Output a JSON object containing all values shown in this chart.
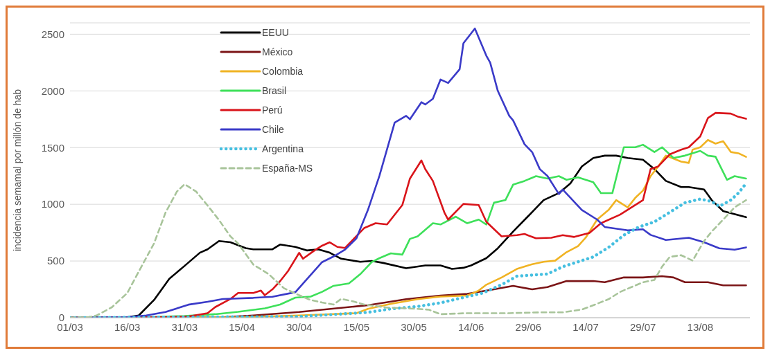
{
  "chart_data": {
    "type": "line",
    "ylabel": "incidencia semamal por millón de hab",
    "ylim": [
      0,
      2600
    ],
    "yticks": [
      0,
      500,
      1000,
      1500,
      2000,
      2500
    ],
    "xlim": [
      "--03-01",
      "--08-26"
    ],
    "xticks": [
      {
        "value": "--03-01",
        "label": "01/03"
      },
      {
        "value": "--03-16",
        "label": "16/03"
      },
      {
        "value": "--03-31",
        "label": "31/03"
      },
      {
        "value": "--04-15",
        "label": "15/04"
      },
      {
        "value": "--04-30",
        "label": "30/04"
      },
      {
        "value": "--05-15",
        "label": "15/05"
      },
      {
        "value": "--05-30",
        "label": "30/05"
      },
      {
        "value": "--06-14",
        "label": "14/06"
      },
      {
        "value": "--06-29",
        "label": "29/06"
      },
      {
        "value": "--07-14",
        "label": "14/07"
      },
      {
        "value": "--07-29",
        "label": "29/07"
      },
      {
        "value": "--08-13",
        "label": "13/08"
      }
    ],
    "grid": "y",
    "legend": "top left",
    "series": [
      {
        "name": "EEUU",
        "color": "#000000",
        "x": [
          "--03-01",
          "--03-16",
          "--03-19",
          "--03-23",
          "--03-27",
          "--03-31",
          "--04-04",
          "--04-06",
          "--04-09",
          "--04-12",
          "--04-16",
          "--04-18",
          "--04-23",
          "--04-25",
          "--04-29",
          "--05-02",
          "--05-05",
          "--05-08",
          "--05-11",
          "--05-16",
          "--05-19",
          "--05-22",
          "--05-28",
          "--06-02",
          "--06-06",
          "--06-09",
          "--06-12",
          "--06-14",
          "--06-18",
          "--06-21",
          "--06-25",
          "--06-29",
          "--07-03",
          "--07-07",
          "--07-10",
          "--07-13",
          "--07-16",
          "--07-19",
          "--07-22",
          "--07-25",
          "--07-29",
          "--08-01",
          "--08-04",
          "--08-08",
          "--08-10",
          "--08-14",
          "--08-16",
          "--08-19",
          "--08-25"
        ],
        "values": [
          0,
          5,
          20,
          156,
          343,
          457,
          573,
          603,
          676,
          665,
          613,
          603,
          603,
          645,
          624,
          593,
          603,
          573,
          520,
          493,
          500,
          483,
          436,
          461,
          461,
          430,
          440,
          461,
          525,
          612,
          759,
          897,
          1037,
          1099,
          1184,
          1334,
          1408,
          1429,
          1429,
          1408,
          1393,
          1311,
          1206,
          1152,
          1152,
          1131,
          1037,
          940,
          886
        ]
      },
      {
        "name": "México",
        "color": "#7b1416",
        "x": [
          "--03-01",
          "--04-10",
          "--04-18",
          "--04-30",
          "--05-15",
          "--05-18",
          "--05-28",
          "--06-06",
          "--06-13",
          "--06-20",
          "--06-25",
          "--06-30",
          "--07-04",
          "--07-09",
          "--07-16",
          "--07-19",
          "--07-24",
          "--07-29",
          "--08-03",
          "--08-06",
          "--08-09",
          "--08-15",
          "--08-19",
          "--08-25"
        ],
        "values": [
          0,
          5,
          20,
          50,
          100,
          110,
          163,
          195,
          210,
          250,
          281,
          250,
          270,
          323,
          323,
          313,
          355,
          355,
          366,
          355,
          313,
          313,
          285,
          285
        ]
      },
      {
        "name": "Colombia",
        "color": "#f0b323",
        "x": [
          "--03-01",
          "--04-15",
          "--04-30",
          "--05-15",
          "--05-18",
          "--05-24",
          "--05-31",
          "--06-06",
          "--06-13",
          "--06-16",
          "--06-18",
          "--06-22",
          "--06-26",
          "--06-30",
          "--07-03",
          "--07-06",
          "--07-09",
          "--07-12",
          "--07-14",
          "--07-17",
          "--07-20",
          "--07-22",
          "--07-25",
          "--07-27",
          "--07-29",
          "--07-31",
          "--08-02",
          "--08-04",
          "--08-08",
          "--08-10",
          "--08-11",
          "--08-13",
          "--08-15",
          "--08-17",
          "--08-19",
          "--08-21",
          "--08-23",
          "--08-25"
        ],
        "values": [
          0,
          5,
          20,
          40,
          78,
          122,
          163,
          186,
          195,
          239,
          291,
          355,
          430,
          472,
          493,
          503,
          578,
          631,
          705,
          865,
          950,
          1037,
          973,
          1057,
          1121,
          1248,
          1334,
          1429,
          1376,
          1365,
          1482,
          1503,
          1567,
          1535,
          1556,
          1461,
          1450,
          1418
        ]
      },
      {
        "name": "Brasil",
        "color": "#3ee05a",
        "x": [
          "--03-01",
          "--03-21",
          "--03-31",
          "--04-08",
          "--04-14",
          "--04-21",
          "--04-25",
          "--04-29",
          "--05-03",
          "--05-06",
          "--05-09",
          "--05-13",
          "--05-16",
          "--05-19",
          "--05-21",
          "--05-24",
          "--05-27",
          "--05-29",
          "--05-31",
          "--06-04",
          "--06-06",
          "--06-10",
          "--06-13",
          "--06-16",
          "--06-18",
          "--06-20",
          "--06-23",
          "--06-25",
          "--06-28",
          "--07-01",
          "--07-04",
          "--07-07",
          "--07-09",
          "--07-12",
          "--07-16",
          "--07-18",
          "--07-21",
          "--07-24",
          "--07-27",
          "--07-29",
          "--08-01",
          "--08-03",
          "--08-05",
          "--08-06",
          "--08-09",
          "--08-13",
          "--08-15",
          "--08-17",
          "--08-20",
          "--08-22",
          "--08-25"
        ],
        "values": [
          0,
          5,
          15,
          31,
          52,
          82,
          116,
          177,
          186,
          228,
          281,
          302,
          384,
          490,
          525,
          568,
          556,
          695,
          717,
          833,
          822,
          891,
          833,
          865,
          822,
          1014,
          1037,
          1173,
          1206,
          1248,
          1227,
          1248,
          1216,
          1237,
          1195,
          1099,
          1099,
          1503,
          1503,
          1525,
          1461,
          1503,
          1440,
          1408,
          1429,
          1471,
          1429,
          1420,
          1216,
          1248,
          1227
        ]
      },
      {
        "name": "Perú",
        "color": "#d9141a",
        "x": [
          "--03-01",
          "--03-26",
          "--04-01",
          "--04-06",
          "--04-08",
          "--04-12",
          "--04-14",
          "--04-18",
          "--04-20",
          "--04-21",
          "--04-23",
          "--04-25",
          "--04-27",
          "--04-30",
          "--05-01",
          "--05-04",
          "--05-06",
          "--05-08",
          "--05-10",
          "--05-12",
          "--05-17",
          "--05-20",
          "--05-23",
          "--05-27",
          "--05-29",
          "--06-01",
          "--06-02",
          "--06-04",
          "--06-07",
          "--06-08",
          "--06-12",
          "--06-16",
          "--06-18",
          "--06-22",
          "--06-26",
          "--06-28",
          "--07-01",
          "--07-05",
          "--07-08",
          "--07-11",
          "--07-15",
          "--07-18",
          "--07-23",
          "--07-26",
          "--07-29",
          "--07-31",
          "--08-02",
          "--08-05",
          "--08-08",
          "--08-10",
          "--08-13",
          "--08-15",
          "--08-17",
          "--08-21",
          "--08-23",
          "--08-25"
        ],
        "values": [
          0,
          5,
          10,
          40,
          93,
          165,
          218,
          218,
          239,
          198,
          250,
          322,
          407,
          572,
          520,
          593,
          635,
          665,
          624,
          615,
          790,
          833,
          822,
          993,
          1227,
          1387,
          1311,
          1206,
          929,
          865,
          1003,
          993,
          845,
          717,
          728,
          738,
          700,
          705,
          728,
          712,
          748,
          833,
          909,
          973,
          1037,
          1311,
          1334,
          1440,
          1482,
          1503,
          1599,
          1760,
          1806,
          1800,
          1771,
          1754
        ]
      },
      {
        "name": "Chile",
        "color": "#3a3ac8",
        "x": [
          "--03-01",
          "--03-16",
          "--03-21",
          "--03-26",
          "--04-01",
          "--04-06",
          "--04-10",
          "--04-18",
          "--04-23",
          "--04-29",
          "--05-06",
          "--05-09",
          "--05-12",
          "--05-15",
          "--05-18",
          "--05-21",
          "--05-25",
          "--05-28",
          "--05-29",
          "--06-01",
          "--06-02",
          "--06-04",
          "--06-06",
          "--06-08",
          "--06-11",
          "--06-12",
          "--06-15",
          "--06-18",
          "--06-19",
          "--06-21",
          "--06-24",
          "--06-25",
          "--06-28",
          "--06-30",
          "--07-02",
          "--07-04",
          "--07-07",
          "--07-08",
          "--07-13",
          "--07-17",
          "--07-19",
          "--07-25",
          "--07-29",
          "--07-31",
          "--08-04",
          "--08-10",
          "--08-14",
          "--08-18",
          "--08-22",
          "--08-25"
        ],
        "values": [
          0,
          5,
          20,
          50,
          115,
          140,
          165,
          175,
          185,
          225,
          490,
          540,
          600,
          700,
          950,
          1250,
          1720,
          1780,
          1750,
          1900,
          1880,
          1930,
          2100,
          2070,
          2190,
          2420,
          2550,
          2310,
          2250,
          2000,
          1780,
          1740,
          1530,
          1460,
          1310,
          1250,
          1090,
          1130,
          950,
          865,
          800,
          770,
          780,
          730,
          685,
          705,
          665,
          612,
          600,
          620
        ]
      },
      {
        "name": "Argentina",
        "color": "#45bfe0",
        "line_style": "dotted",
        "x": [
          "--03-01",
          "--04-30",
          "--05-10",
          "--05-18",
          "--05-24",
          "--05-31",
          "--06-06",
          "--06-13",
          "--06-17",
          "--06-22",
          "--06-26",
          "--06-30",
          "--07-04",
          "--07-08",
          "--07-12",
          "--07-16",
          "--07-20",
          "--07-24",
          "--07-28",
          "--08-01",
          "--08-05",
          "--08-09",
          "--08-13",
          "--08-16",
          "--08-18",
          "--08-21",
          "--08-23",
          "--08-25"
        ],
        "values": [
          0,
          10,
          30,
          47,
          78,
          99,
          131,
          186,
          217,
          291,
          366,
          376,
          385,
          450,
          493,
          536,
          620,
          728,
          801,
          845,
          929,
          1014,
          1046,
          1025,
          982,
          1037,
          1099,
          1184
        ]
      },
      {
        "name": "España-MS",
        "color": "#a8c49a",
        "line_style": "dashed",
        "x": [
          "--03-01",
          "--03-06",
          "--03-08",
          "--03-12",
          "--03-16",
          "--03-19",
          "--03-23",
          "--03-26",
          "--03-29",
          "--03-31",
          "--04-03",
          "--04-06",
          "--04-09",
          "--04-12",
          "--04-14",
          "--04-18",
          "--04-22",
          "--04-26",
          "--04-30",
          "--05-03",
          "--05-06",
          "--05-09",
          "--05-11",
          "--05-14",
          "--05-17",
          "--05-23",
          "--05-31",
          "--06-03",
          "--06-06",
          "--06-13",
          "--06-24",
          "--07-02",
          "--07-08",
          "--07-13",
          "--07-16",
          "--07-20",
          "--07-23",
          "--07-26",
          "--07-29",
          "--08-01",
          "--08-03",
          "--08-05",
          "--08-08",
          "--08-11",
          "--08-14",
          "--08-16",
          "--08-19",
          "--08-22",
          "--08-25"
        ],
        "values": [
          0,
          5,
          20,
          93,
          218,
          407,
          655,
          926,
          1113,
          1177,
          1113,
          990,
          862,
          717,
          655,
          468,
          385,
          260,
          198,
          156,
          134,
          116,
          166,
          145,
          116,
          89,
          78,
          70,
          31,
          40,
          40,
          47,
          47,
          72,
          110,
          163,
          227,
          270,
          312,
          333,
          450,
          536,
          551,
          503,
          676,
          759,
          865,
          973,
          1037
        ]
      }
    ]
  }
}
